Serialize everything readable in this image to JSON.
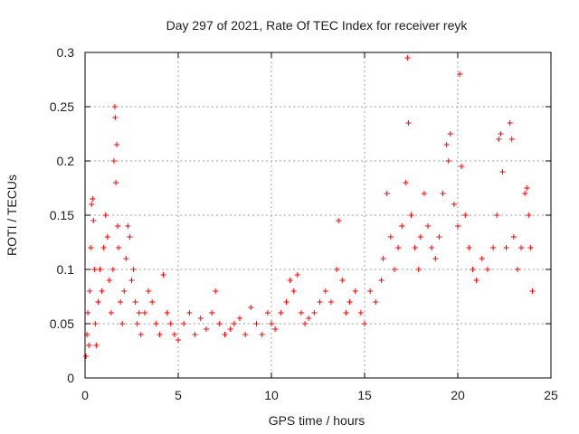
{
  "chart_data": {
    "type": "scatter",
    "title": "Day 297 of 2021, Rate Of TEC Index for receiver reyk",
    "xlabel": "GPS time / hours",
    "ylabel": "ROTI / TECUs",
    "xlim": [
      0,
      25
    ],
    "ylim": [
      0,
      0.3
    ],
    "x_ticks": [
      0,
      5,
      10,
      15,
      20,
      25
    ],
    "x_tick_labels": [
      "0",
      "5",
      "10",
      "15",
      "20",
      "25"
    ],
    "y_ticks": [
      0,
      0.05,
      0.1,
      0.15,
      0.2,
      0.25,
      0.3
    ],
    "y_tick_labels": [
      "0",
      "0.05",
      "0.1",
      "0.15",
      "0.2",
      "0.25",
      "0.3"
    ],
    "grid": true,
    "marker": "+",
    "color": "#ff0000",
    "series": [
      {
        "points": [
          [
            0.05,
            0.02
          ],
          [
            0.1,
            0.04
          ],
          [
            0.15,
            0.06
          ],
          [
            0.2,
            0.03
          ],
          [
            0.25,
            0.08
          ],
          [
            0.3,
            0.12
          ],
          [
            0.35,
            0.16
          ],
          [
            0.4,
            0.165
          ],
          [
            0.45,
            0.145
          ],
          [
            0.5,
            0.1
          ],
          [
            0.55,
            0.05
          ],
          [
            0.6,
            0.03
          ],
          [
            0.7,
            0.07
          ],
          [
            0.8,
            0.1
          ],
          [
            0.9,
            0.08
          ],
          [
            1.0,
            0.12
          ],
          [
            1.1,
            0.15
          ],
          [
            1.2,
            0.13
          ],
          [
            1.3,
            0.09
          ],
          [
            1.4,
            0.06
          ],
          [
            1.5,
            0.1
          ],
          [
            1.55,
            0.2
          ],
          [
            1.6,
            0.25
          ],
          [
            1.62,
            0.24
          ],
          [
            1.65,
            0.18
          ],
          [
            1.7,
            0.215
          ],
          [
            1.75,
            0.14
          ],
          [
            1.8,
            0.12
          ],
          [
            1.9,
            0.07
          ],
          [
            2.0,
            0.05
          ],
          [
            2.1,
            0.08
          ],
          [
            2.2,
            0.11
          ],
          [
            2.3,
            0.14
          ],
          [
            2.4,
            0.13
          ],
          [
            2.5,
            0.09
          ],
          [
            2.6,
            0.1
          ],
          [
            2.7,
            0.07
          ],
          [
            2.8,
            0.05
          ],
          [
            2.9,
            0.06
          ],
          [
            3.0,
            0.04
          ],
          [
            3.2,
            0.06
          ],
          [
            3.4,
            0.08
          ],
          [
            3.6,
            0.07
          ],
          [
            3.8,
            0.05
          ],
          [
            4.0,
            0.04
          ],
          [
            4.2,
            0.095
          ],
          [
            4.4,
            0.06
          ],
          [
            4.6,
            0.05
          ],
          [
            4.8,
            0.04
          ],
          [
            5.0,
            0.035
          ],
          [
            5.3,
            0.05
          ],
          [
            5.6,
            0.06
          ],
          [
            5.9,
            0.04
          ],
          [
            6.2,
            0.055
          ],
          [
            6.5,
            0.045
          ],
          [
            6.8,
            0.06
          ],
          [
            7.0,
            0.08
          ],
          [
            7.2,
            0.05
          ],
          [
            7.5,
            0.04
          ],
          [
            7.8,
            0.045
          ],
          [
            8.0,
            0.05
          ],
          [
            8.3,
            0.055
          ],
          [
            8.6,
            0.04
          ],
          [
            8.9,
            0.065
          ],
          [
            9.2,
            0.05
          ],
          [
            9.5,
            0.04
          ],
          [
            9.8,
            0.06
          ],
          [
            10.0,
            0.05
          ],
          [
            10.2,
            0.045
          ],
          [
            10.5,
            0.06
          ],
          [
            10.8,
            0.07
          ],
          [
            11.0,
            0.09
          ],
          [
            11.2,
            0.08
          ],
          [
            11.4,
            0.095
          ],
          [
            11.6,
            0.06
          ],
          [
            11.8,
            0.05
          ],
          [
            12.0,
            0.055
          ],
          [
            12.3,
            0.06
          ],
          [
            12.6,
            0.07
          ],
          [
            12.9,
            0.08
          ],
          [
            13.2,
            0.07
          ],
          [
            13.5,
            0.1
          ],
          [
            13.6,
            0.145
          ],
          [
            13.8,
            0.09
          ],
          [
            14.0,
            0.06
          ],
          [
            14.2,
            0.07
          ],
          [
            14.5,
            0.08
          ],
          [
            14.8,
            0.06
          ],
          [
            15.0,
            0.05
          ],
          [
            15.3,
            0.08
          ],
          [
            15.6,
            0.07
          ],
          [
            15.9,
            0.09
          ],
          [
            16.0,
            0.11
          ],
          [
            16.2,
            0.17
          ],
          [
            16.4,
            0.13
          ],
          [
            16.6,
            0.1
          ],
          [
            16.8,
            0.12
          ],
          [
            17.0,
            0.14
          ],
          [
            17.2,
            0.18
          ],
          [
            17.3,
            0.295
          ],
          [
            17.35,
            0.235
          ],
          [
            17.5,
            0.15
          ],
          [
            17.7,
            0.12
          ],
          [
            17.9,
            0.1
          ],
          [
            18.0,
            0.13
          ],
          [
            18.2,
            0.17
          ],
          [
            18.4,
            0.14
          ],
          [
            18.6,
            0.12
          ],
          [
            18.8,
            0.11
          ],
          [
            19.0,
            0.13
          ],
          [
            19.2,
            0.17
          ],
          [
            19.4,
            0.215
          ],
          [
            19.5,
            0.2
          ],
          [
            19.6,
            0.225
          ],
          [
            19.8,
            0.16
          ],
          [
            20.0,
            0.14
          ],
          [
            20.1,
            0.28
          ],
          [
            20.2,
            0.195
          ],
          [
            20.4,
            0.15
          ],
          [
            20.6,
            0.12
          ],
          [
            20.8,
            0.1
          ],
          [
            21.0,
            0.09
          ],
          [
            21.3,
            0.11
          ],
          [
            21.6,
            0.1
          ],
          [
            21.9,
            0.12
          ],
          [
            22.1,
            0.15
          ],
          [
            22.2,
            0.22
          ],
          [
            22.3,
            0.225
          ],
          [
            22.4,
            0.19
          ],
          [
            22.6,
            0.12
          ],
          [
            22.8,
            0.235
          ],
          [
            22.9,
            0.22
          ],
          [
            23.0,
            0.13
          ],
          [
            23.2,
            0.1
          ],
          [
            23.4,
            0.12
          ],
          [
            23.6,
            0.17
          ],
          [
            23.7,
            0.175
          ],
          [
            23.8,
            0.15
          ],
          [
            23.9,
            0.12
          ],
          [
            24.0,
            0.08
          ]
        ]
      }
    ]
  }
}
